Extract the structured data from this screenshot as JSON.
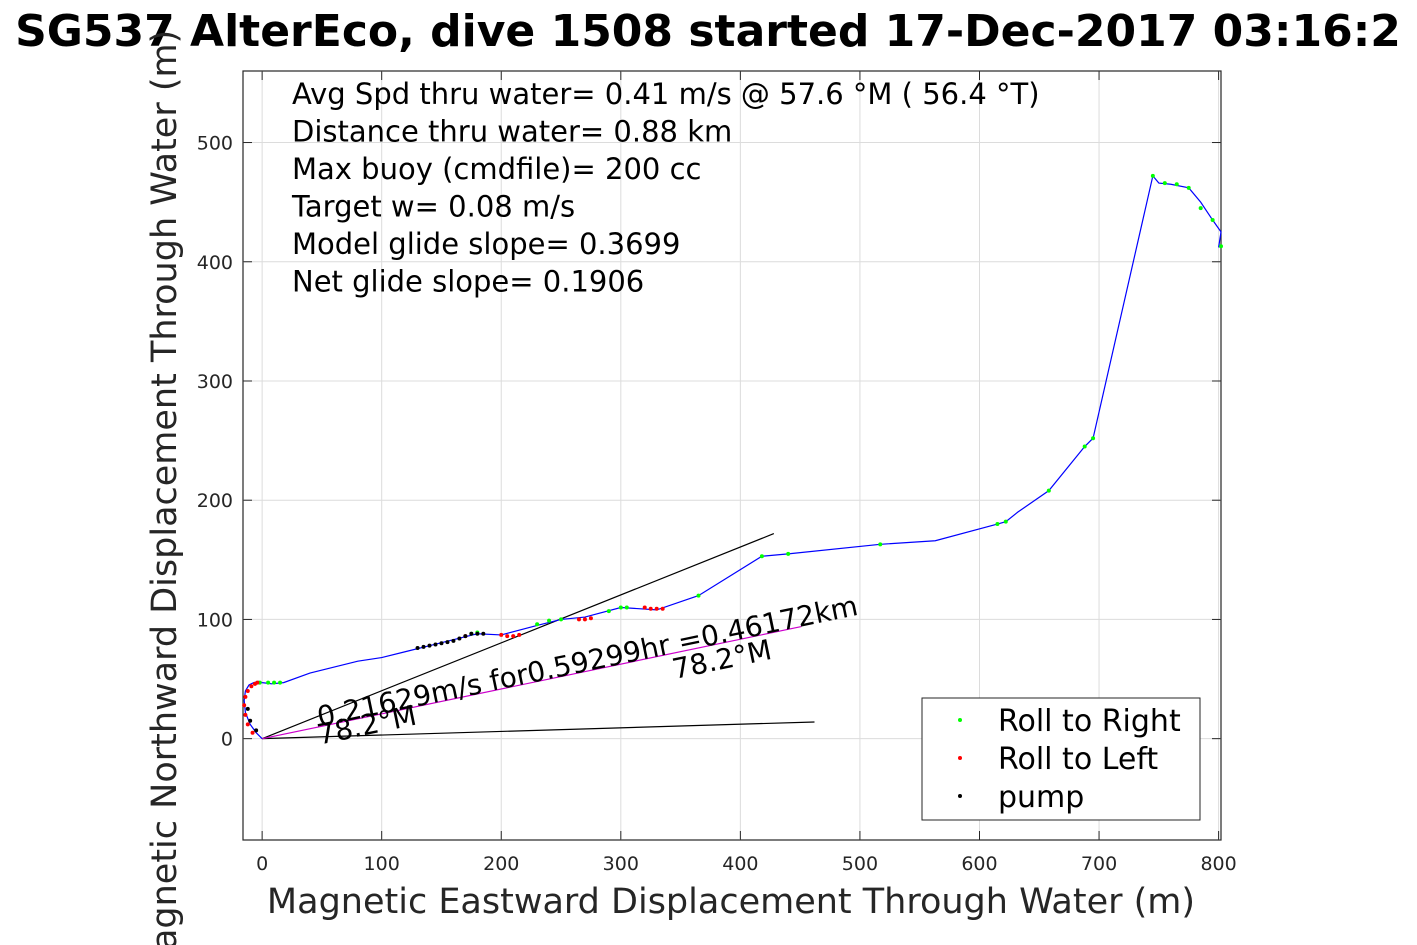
{
  "chart_data": {
    "type": "line",
    "title": "SG537 AlterEco, dive 1508 started 17-Dec-2017 03:16:2",
    "xlabel": "Magnetic Eastward Displacement Through Water (m)",
    "ylabel": "Magnetic Northward Displacement Through Water (m)",
    "xlim": [
      -16,
      802
    ],
    "ylim": [
      -85,
      560
    ],
    "xticks": [
      0,
      100,
      200,
      300,
      400,
      500,
      600,
      700,
      800
    ],
    "yticks": [
      0,
      100,
      200,
      300,
      400,
      500
    ],
    "grid": true,
    "stats": [
      "Avg Spd thru water=  0.41 m/s @  57.6 °M ( 56.4 °T)",
      "Distance thru water=  0.88 km",
      "Max buoy (cmdfile)= 200 cc",
      "Target w= 0.08 m/s",
      "Model glide slope= 0.3699",
      "Net glide slope= 0.1906"
    ],
    "track": {
      "color": "#0000ff",
      "x": [
        0,
        -5,
        -10,
        -14,
        -15,
        -14,
        -11,
        -7,
        -3,
        0,
        8,
        18,
        40,
        80,
        100,
        120,
        140,
        160,
        180,
        200,
        230,
        250,
        270,
        300,
        330,
        365,
        418,
        440,
        517,
        563,
        615,
        622,
        632,
        658,
        688,
        695,
        745,
        750,
        760,
        775,
        785,
        795,
        802,
        800
      ],
      "y": [
        0,
        5,
        12,
        22,
        32,
        40,
        45,
        47,
        48,
        47,
        46,
        47,
        55,
        65,
        68,
        73,
        78,
        83,
        88,
        87,
        95,
        100,
        102,
        110,
        108,
        120,
        153,
        155,
        163,
        166,
        180,
        182,
        190,
        208,
        245,
        252,
        472,
        466,
        465,
        462,
        450,
        435,
        425,
        412
      ]
    },
    "series": [
      {
        "name": "Roll to Right",
        "color": "#00ff00",
        "points": [
          [
            -2,
            47
          ],
          [
            5,
            47
          ],
          [
            10,
            47
          ],
          [
            15,
            47
          ],
          [
            175,
            88
          ],
          [
            180,
            89
          ],
          [
            230,
            96
          ],
          [
            240,
            99
          ],
          [
            250,
            100
          ],
          [
            290,
            107
          ],
          [
            300,
            110
          ],
          [
            305,
            110
          ],
          [
            365,
            120
          ],
          [
            418,
            153
          ],
          [
            440,
            155
          ],
          [
            517,
            163
          ],
          [
            615,
            180
          ],
          [
            622,
            182
          ],
          [
            658,
            208
          ],
          [
            688,
            245
          ],
          [
            695,
            252
          ],
          [
            745,
            472
          ],
          [
            755,
            466
          ],
          [
            765,
            465
          ],
          [
            775,
            462
          ],
          [
            785,
            445
          ],
          [
            795,
            435
          ],
          [
            802,
            413
          ]
        ]
      },
      {
        "name": "Roll to Left",
        "color": "#ff0000",
        "points": [
          [
            -8,
            5
          ],
          [
            -12,
            12
          ],
          [
            -14,
            20
          ],
          [
            -15,
            28
          ],
          [
            -14,
            35
          ],
          [
            -12,
            40
          ],
          [
            -9,
            44
          ],
          [
            -6,
            46
          ],
          [
            -4,
            47
          ],
          [
            170,
            86
          ],
          [
            200,
            87
          ],
          [
            205,
            86
          ],
          [
            210,
            86
          ],
          [
            215,
            87
          ],
          [
            265,
            100
          ],
          [
            270,
            100
          ],
          [
            275,
            101
          ],
          [
            320,
            110
          ],
          [
            325,
            109
          ],
          [
            330,
            109
          ],
          [
            335,
            109
          ]
        ]
      },
      {
        "name": "pump",
        "color": "#000000",
        "points": [
          [
            130,
            76
          ],
          [
            135,
            77
          ],
          [
            140,
            78
          ],
          [
            145,
            79
          ],
          [
            150,
            80
          ],
          [
            155,
            81
          ],
          [
            160,
            82
          ],
          [
            165,
            84
          ],
          [
            170,
            86
          ],
          [
            175,
            88
          ],
          [
            180,
            88
          ],
          [
            185,
            88
          ],
          [
            -12,
            25
          ],
          [
            -10,
            15
          ],
          [
            -5,
            7
          ]
        ]
      }
    ],
    "magenta_segment": {
      "color": "#cc00cc",
      "x": [
        0,
        451
      ],
      "y": [
        0,
        94
      ]
    },
    "reference_lines": [
      {
        "color": "#000000",
        "x": [
          0,
          428
        ],
        "y": [
          0,
          172
        ]
      },
      {
        "color": "#000000",
        "x": [
          0,
          462
        ],
        "y": [
          0,
          14
        ]
      }
    ],
    "annotations": [
      {
        "text": "0.21629m/s for0.59299hr =0.46172km",
        "x": 48,
        "y": 10
      },
      {
        "text": "78.2°M",
        "x": 48,
        "y": -5
      },
      {
        "text": "78.2°M",
        "x": 345,
        "y": 50
      }
    ],
    "legend": {
      "position": "bottom-right",
      "entries": [
        "Roll to Right",
        "Roll to Left",
        "pump"
      ]
    }
  }
}
